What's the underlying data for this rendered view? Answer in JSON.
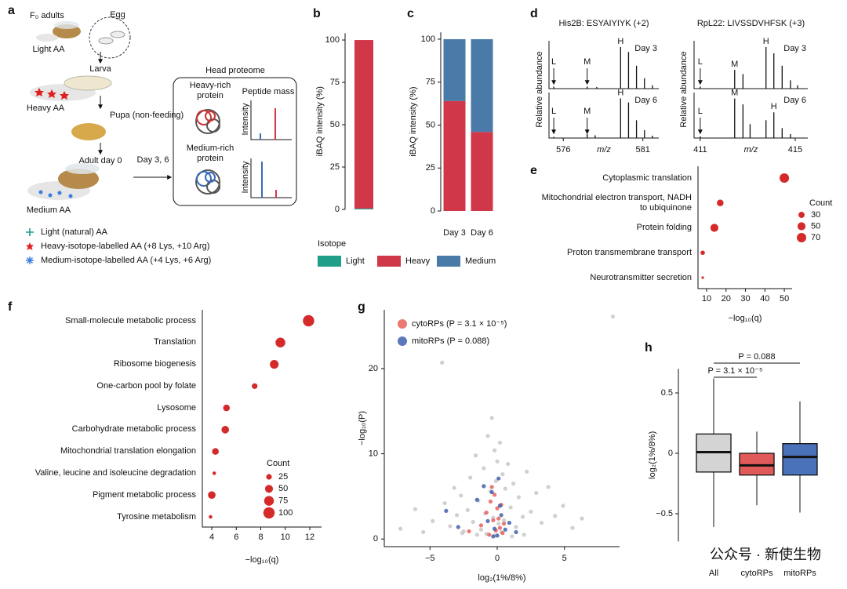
{
  "diagram": {
    "label": "a",
    "f0_adults": "F₀ adults",
    "egg": "Egg",
    "light_aa": "Light AA",
    "larva": "Larva",
    "heavy_aa": "Heavy AA",
    "pupa": "Pupa (non-feeding)",
    "adult": "Adult day 0",
    "medium_aa": "Medium AA",
    "timepoints": "Day 3, 6",
    "box_title": "Head proteome",
    "heavy_rich": "Heavy-rich protein",
    "medium_rich": "Medium-rich protein",
    "peptide_mass": "Peptide mass",
    "intensity": "Intensity",
    "legend": [
      "Light (natural) AA",
      "Heavy-isotope-labelled AA (+8 Lys, +10 Arg)",
      "Medium-isotope-labelled AA (+4 Lys, +6 Arg)"
    ]
  },
  "watermark": "公众号 · 新使生物",
  "chart_data": [
    {
      "type": "stacked_bar",
      "label": "b",
      "ylabel": "iBAQ intensity (%)",
      "categories": [
        null
      ],
      "series": [
        {
          "name": "Light",
          "color": "#1f9e89",
          "values": [
            0.5
          ]
        },
        {
          "name": "Heavy",
          "color": "#d0384a",
          "values": [
            99.5
          ]
        },
        {
          "name": "Medium",
          "color": "#4a7aa7",
          "values": [
            0
          ]
        }
      ],
      "ylim": [
        0,
        104
      ],
      "yticks": [
        0,
        25,
        50,
        75,
        100
      ],
      "legend_title": "Isotope"
    },
    {
      "type": "stacked_bar",
      "label": "c",
      "ylabel": "iBAQ intensity (%)",
      "categories": [
        "Day 3",
        "Day 6"
      ],
      "series": [
        {
          "name": "Light",
          "color": "#1f9e89",
          "values": [
            0,
            0
          ]
        },
        {
          "name": "Heavy",
          "color": "#d0384a",
          "values": [
            64,
            46
          ]
        },
        {
          "name": "Medium",
          "color": "#4a7aa7",
          "values": [
            36,
            54
          ]
        }
      ],
      "ylim": [
        0,
        104
      ],
      "yticks": [
        0,
        25,
        50,
        75,
        100
      ]
    },
    {
      "type": "spectrum",
      "label": "d",
      "title": "His2B: ESYAIYIYK (+2)",
      "ylabel": "Relative abundance",
      "xlabel": "m/z",
      "xlim": [
        575.1,
        582.0
      ],
      "xticks": [
        576,
        581
      ],
      "ylim": [
        0,
        1.15
      ],
      "panels": [
        {
          "tag": "Day 3",
          "x": [
            575.4,
            577.5,
            578.1,
            579.6,
            580.1,
            580.6,
            581.1,
            581.6
          ],
          "values": [
            0.05,
            0.05,
            0.04,
            1.0,
            0.88,
            0.55,
            0.25,
            0.08
          ],
          "annotations": [
            {
              "text": "L",
              "x": 575.4,
              "arrow": true
            },
            {
              "text": "M",
              "x": 577.5,
              "arrow": true
            },
            {
              "text": "H",
              "x": 579.6,
              "arrow": false
            }
          ]
        },
        {
          "tag": "Day 6",
          "x": [
            575.4,
            577.5,
            578.0,
            579.6,
            580.1,
            580.6,
            581.1,
            581.6
          ],
          "values": [
            0.03,
            0.1,
            0.07,
            1.0,
            0.9,
            0.45,
            0.2,
            0.06
          ],
          "annotations": [
            {
              "text": "L",
              "x": 575.4,
              "arrow": true
            },
            {
              "text": "M",
              "x": 577.5,
              "arrow": true
            },
            {
              "text": "H",
              "x": 579.6,
              "arrow": false
            }
          ]
        }
      ]
    },
    {
      "type": "spectrum",
      "title": "RpL22: LIVSSDVHFSK (+3)",
      "ylabel": "Relative abundance",
      "xlabel": "m/z",
      "xlim": [
        410.74,
        415.53
      ],
      "xticks": [
        411,
        415
      ],
      "ylim": [
        0,
        1.15
      ],
      "panels": [
        {
          "tag": "Day 3",
          "x": [
            411.0,
            412.45,
            412.8,
            413.77,
            414.1,
            414.45,
            414.8,
            415.1
          ],
          "values": [
            0.05,
            0.45,
            0.35,
            1.0,
            0.85,
            0.55,
            0.2,
            0.08
          ],
          "annotations": [
            {
              "text": "L",
              "x": 411.0,
              "arrow": true
            },
            {
              "text": "M",
              "x": 412.45,
              "arrow": false
            },
            {
              "text": "H",
              "x": 413.77,
              "arrow": false
            }
          ]
        },
        {
          "tag": "Day 6",
          "x": [
            411.0,
            412.45,
            412.8,
            413.1,
            413.77,
            414.1,
            414.45,
            414.8
          ],
          "values": [
            0.04,
            1.0,
            0.85,
            0.35,
            0.45,
            0.65,
            0.25,
            0.1
          ],
          "annotations": [
            {
              "text": "L",
              "x": 411.0,
              "arrow": true
            },
            {
              "text": "M",
              "x": 412.45,
              "arrow": false
            },
            {
              "text": "H",
              "x": 414.1,
              "arrow": false
            }
          ]
        }
      ]
    },
    {
      "type": "dot",
      "label": "e",
      "color": "#d42a2a",
      "xlabel": "−log₁₀(q)",
      "categories": [
        "Cytoplasmic translation",
        "Mitochondrial electron transport, NADH to ubiquinone",
        "Protein folding",
        "Proton transmembrane transport",
        "Neurotransmitter secretion"
      ],
      "values": [
        50,
        17,
        14,
        8,
        8
      ],
      "sizes": [
        70,
        35,
        50,
        15,
        5
      ],
      "xlim": [
        5.56,
        54
      ],
      "xticks": [
        10,
        20,
        30,
        40,
        50
      ],
      "size_legend": {
        "title": "Count",
        "values": [
          30,
          50,
          70
        ]
      }
    },
    {
      "type": "dot",
      "label": "f",
      "color": "#d42a2a",
      "xlabel": "−log₁₀(q)",
      "categories": [
        "Small-molecule metabolic process",
        "Translation",
        "Ribosome biogenesis",
        "One-carbon pool by folate",
        "Lysosome",
        "Carbohydrate metabolic process",
        "Mitochondrial translation elongation",
        "Valine, leucine and isoleucine degradation",
        "Pigment metabolic process",
        "Tyrosine metabolism"
      ],
      "values": [
        11.9,
        9.6,
        9.1,
        7.5,
        5.2,
        5.1,
        4.3,
        4.2,
        4.0,
        3.9
      ],
      "sizes": [
        100,
        75,
        60,
        25,
        35,
        45,
        35,
        10,
        45,
        10
      ],
      "xlim": [
        3.23,
        12.96
      ],
      "xticks": [
        4,
        6,
        8,
        10,
        12
      ],
      "size_legend": {
        "title": "Count",
        "values": [
          25,
          50,
          75,
          100
        ]
      }
    },
    {
      "type": "scatter",
      "label": "g",
      "xlabel": "log₂(1%/8%)",
      "ylabel": "−log₁₀(P)",
      "xlim": [
        -8.4,
        9.1
      ],
      "ylim": [
        -0.9,
        26.9
      ],
      "xticks": [
        {
          "value": -5,
          "label": "−5"
        },
        0,
        5
      ],
      "yticks": [
        0,
        10,
        20
      ],
      "series": [
        {
          "color": "#c8c8c8",
          "x": [
            -7.2,
            -6.1,
            -5.5,
            -4.8,
            -4.1,
            -3.9,
            -3.5,
            -3.2,
            -3.0,
            -2.7,
            -2.5,
            -2.2,
            -2.0,
            -1.8,
            -1.6,
            -1.4,
            -1.2,
            -1.0,
            -0.9,
            -0.7,
            -0.5,
            -0.4,
            -0.3,
            -0.2,
            -0.1,
            0,
            0.1,
            0.2,
            0.3,
            0.4,
            0.5,
            0.6,
            0.8,
            1.0,
            1.2,
            1.4,
            1.6,
            1.9,
            2.2,
            2.5,
            2.9,
            3.3,
            3.8,
            4.3,
            4.9,
            5.6,
            6.3,
            -0.8,
            -0.2,
            0.3,
            -1.5,
            1.1,
            -2.6,
            2.0,
            8.6
          ],
          "values": [
            1.2,
            3.5,
            0.8,
            2.1,
            20.7,
            4.2,
            1.5,
            6.0,
            2.8,
            5.1,
            0.9,
            3.4,
            7.2,
            2.0,
            9.8,
            4.5,
            1.1,
            8.3,
            3.0,
            12.1,
            5.6,
            14.2,
            2.5,
            10.4,
            6.8,
            9.1,
            1.8,
            11.3,
            4.0,
            7.6,
            2.2,
            5.9,
            8.8,
            3.7,
            6.5,
            1.4,
            4.9,
            2.6,
            7.9,
            3.2,
            5.4,
            1.9,
            6.1,
            2.7,
            3.9,
            1.3,
            2.4,
            0.6,
            0.4,
            0.8,
            0.5,
            0.3,
            0.7,
            0.5,
            26.1
          ]
        },
        {
          "name": "cytoRPs (P = 3.1 × 10⁻⁵)",
          "color": "#e8605a",
          "x": [
            -2.1,
            -1.2,
            -0.8,
            -0.5,
            -0.3,
            -0.2,
            -0.1,
            0,
            0.1,
            0.2,
            0.3,
            0.5,
            -0.4,
            -0.6,
            0.4
          ],
          "values": [
            0.9,
            1.6,
            3.1,
            4.4,
            2.2,
            5.2,
            1.0,
            3.6,
            2.4,
            1.3,
            4.0,
            1.8,
            6.1,
            0.5,
            0.7
          ]
        },
        {
          "name": "mitoRPs (P = 0.088)",
          "color": "#3f5fae",
          "x": [
            -3.8,
            -2.9,
            -1.0,
            -0.7,
            -0.4,
            -0.2,
            0,
            0.1,
            0.3,
            0.6,
            0.9,
            1.4,
            -0.3,
            0.2,
            -1.5
          ],
          "values": [
            3.3,
            1.4,
            6.2,
            2.1,
            5.5,
            1.2,
            0.4,
            7.1,
            2.8,
            1.1,
            1.9,
            0.8,
            0.3,
            3.9,
            4.6
          ]
        }
      ]
    },
    {
      "type": "box",
      "label": "h",
      "ylabel": "log₂(1%/8%)",
      "categories": [
        "All",
        "cytoRPs",
        "mitoRPs"
      ],
      "colors": [
        "#d4d4d4",
        "#e05a5a",
        "#4a72b8"
      ],
      "boxes": [
        {
          "whislo": -0.61,
          "q1": -0.155,
          "med": 0.01,
          "q3": 0.16,
          "whishi": 0.62
        },
        {
          "whislo": -0.43,
          "q1": -0.18,
          "med": -0.1,
          "q3": 0.0,
          "whishi": 0.18
        },
        {
          "whislo": -0.49,
          "q1": -0.18,
          "med": -0.03,
          "q3": 0.08,
          "whishi": 0.43
        }
      ],
      "ylim": [
        -0.73,
        0.7
      ],
      "yticks": [
        0.5,
        0,
        {
          "value": -0.5,
          "label": "−0.5"
        }
      ],
      "brackets": [
        {
          "text": "P = 0.088",
          "between": [
            "All",
            "mitoRPs"
          ]
        },
        {
          "text": "P = 3.1 × 10⁻⁵",
          "between": [
            "All",
            "cytoRPs"
          ]
        }
      ]
    }
  ]
}
